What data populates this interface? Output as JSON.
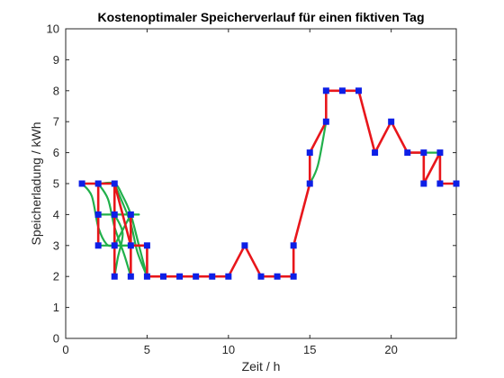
{
  "chart_data": {
    "type": "line",
    "title": "Kostenoptimaler Speicherverlauf für einen fiktiven Tag",
    "xlabel": "Zeit / h",
    "ylabel": "Speicherladung / kWh",
    "xlim": [
      0,
      24
    ],
    "ylim": [
      0,
      10
    ],
    "xticks": [
      "0",
      "5",
      "10",
      "15",
      "20"
    ],
    "yticks": [
      "0",
      "1",
      "2",
      "3",
      "4",
      "5",
      "6",
      "7",
      "8",
      "9",
      "10"
    ],
    "grid": false,
    "series": [
      {
        "style": "red line with blue square markers",
        "color": "#e8161b",
        "marker_color": "#0d1fe6",
        "points": [
          [
            1,
            5
          ],
          [
            2,
            5
          ],
          [
            2,
            4
          ],
          [
            2,
            3
          ],
          [
            2,
            5
          ],
          [
            3,
            5
          ],
          [
            3,
            4
          ],
          [
            3,
            3
          ],
          [
            3,
            2
          ],
          [
            3,
            5
          ],
          [
            4,
            3
          ],
          [
            4,
            2
          ],
          [
            4,
            4
          ],
          [
            4,
            3
          ],
          [
            5,
            3
          ],
          [
            5,
            2
          ],
          [
            6,
            2
          ],
          [
            7,
            2
          ],
          [
            8,
            2
          ],
          [
            9,
            2
          ],
          [
            10,
            2
          ],
          [
            11,
            3
          ],
          [
            12,
            2
          ],
          [
            13,
            2
          ],
          [
            14,
            2
          ],
          [
            14,
            3
          ],
          [
            15,
            5
          ],
          [
            15,
            6
          ],
          [
            16,
            7
          ],
          [
            16,
            8
          ],
          [
            17,
            8
          ],
          [
            18,
            8
          ],
          [
            19,
            6
          ],
          [
            20,
            7
          ],
          [
            21,
            6
          ],
          [
            22,
            6
          ],
          [
            22,
            5
          ],
          [
            23,
            6
          ],
          [
            23,
            5
          ],
          [
            24,
            5
          ]
        ]
      },
      {
        "style": "green smooth curves",
        "color": "#21b04b",
        "curves": [
          [
            [
              1,
              5
            ],
            [
              1.6,
              4.6
            ],
            [
              2,
              3.6
            ],
            [
              2.5,
              3.05
            ],
            [
              3,
              3
            ],
            [
              4,
              3.0
            ],
            [
              5,
              3
            ]
          ],
          [
            [
              1,
              5
            ],
            [
              2,
              5
            ],
            [
              3,
              5
            ],
            [
              3.5,
              4.6
            ],
            [
              4,
              4
            ],
            [
              4.5,
              3
            ],
            [
              5,
              2
            ]
          ],
          [
            [
              2,
              4
            ],
            [
              3,
              4
            ],
            [
              4,
              4
            ],
            [
              4.5,
              4
            ]
          ],
          [
            [
              2,
              5
            ],
            [
              2.6,
              4.5
            ],
            [
              3,
              3.6
            ],
            [
              3.6,
              2.7
            ],
            [
              4,
              2
            ]
          ],
          [
            [
              3,
              5
            ],
            [
              3.4,
              4.5
            ],
            [
              4,
              3.7
            ],
            [
              4.4,
              2.8
            ],
            [
              5,
              2
            ]
          ],
          [
            [
              2,
              3
            ],
            [
              3,
              3
            ],
            [
              4,
              3
            ]
          ],
          [
            [
              3,
              4
            ],
            [
              3.5,
              3.4
            ],
            [
              3.2,
              2.6
            ],
            [
              3,
              2
            ]
          ],
          [
            [
              3,
              3
            ],
            [
              3.6,
              3.6
            ],
            [
              4,
              4
            ]
          ],
          [
            [
              15,
              5
            ],
            [
              15.5,
              5.6
            ],
            [
              16,
              7
            ]
          ],
          [
            [
              21,
              6
            ],
            [
              22,
              6
            ],
            [
              23,
              6
            ]
          ]
        ]
      }
    ]
  }
}
